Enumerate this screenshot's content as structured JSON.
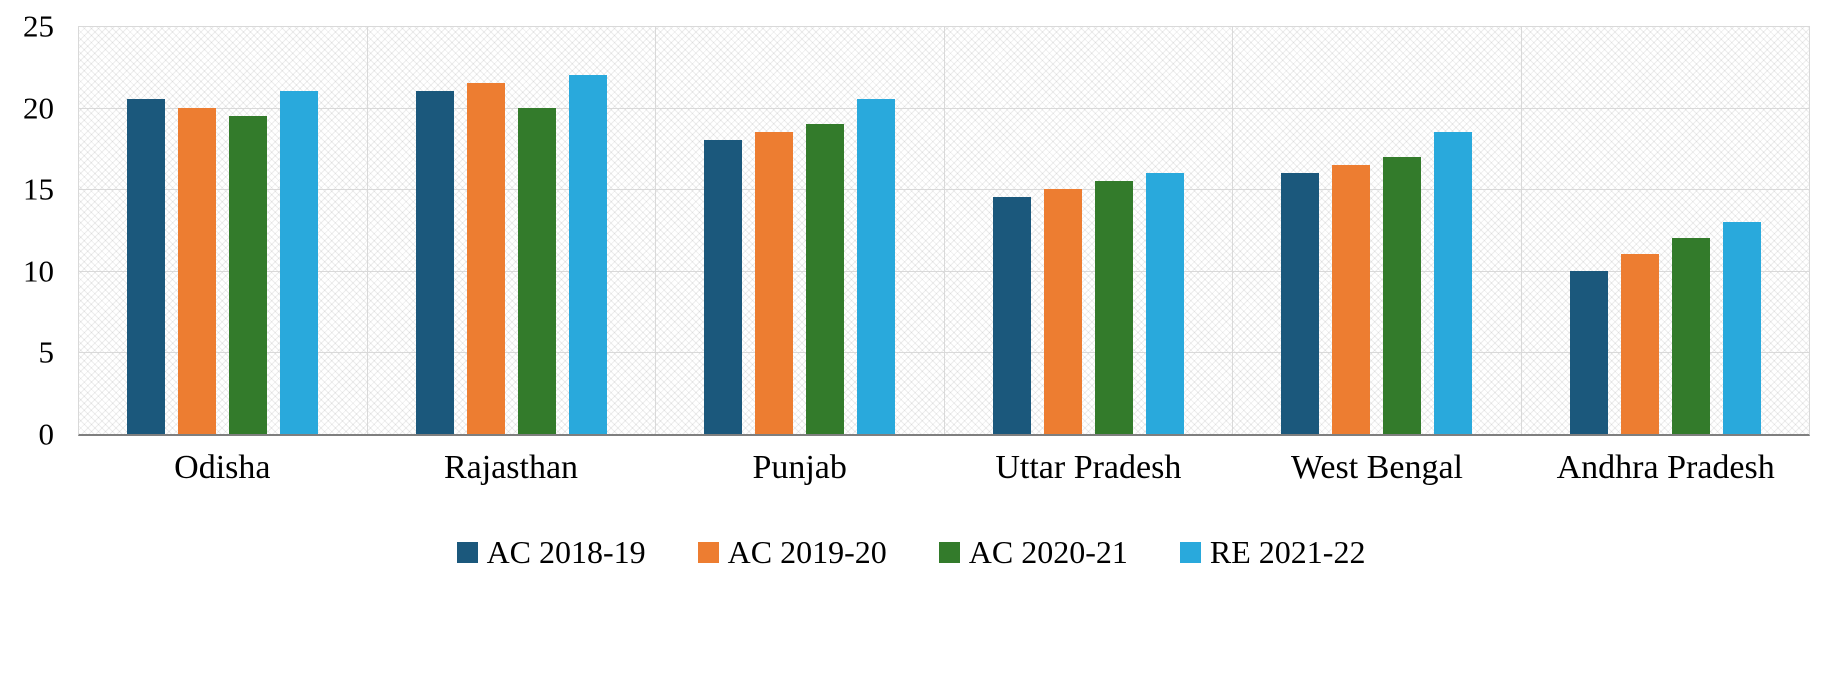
{
  "chart_data": {
    "type": "bar",
    "categories": [
      "Odisha",
      "Rajasthan",
      "Punjab",
      "Uttar Pradesh",
      "West Bengal",
      "Andhra Pradesh"
    ],
    "series": [
      {
        "name": "AC 2018-19",
        "color": "#1B587C",
        "values": [
          20.5,
          21,
          18,
          14.5,
          16,
          10
        ]
      },
      {
        "name": "AC 2019-20",
        "color": "#ED7D31",
        "values": [
          20,
          21.5,
          18.5,
          15,
          16.5,
          11
        ]
      },
      {
        "name": "AC 2020-21",
        "color": "#337B2B",
        "values": [
          19.5,
          20,
          19,
          15.5,
          17,
          12
        ]
      },
      {
        "name": "RE 2021-22",
        "color": "#29A9DC",
        "values": [
          21,
          22,
          20.5,
          16,
          18.5,
          13
        ]
      }
    ],
    "ylim": [
      0,
      25
    ],
    "yticks": [
      0,
      5,
      10,
      15,
      20,
      25
    ],
    "grid": true,
    "legend_position": "bottom",
    "title": "",
    "xlabel": "",
    "ylabel": ""
  }
}
